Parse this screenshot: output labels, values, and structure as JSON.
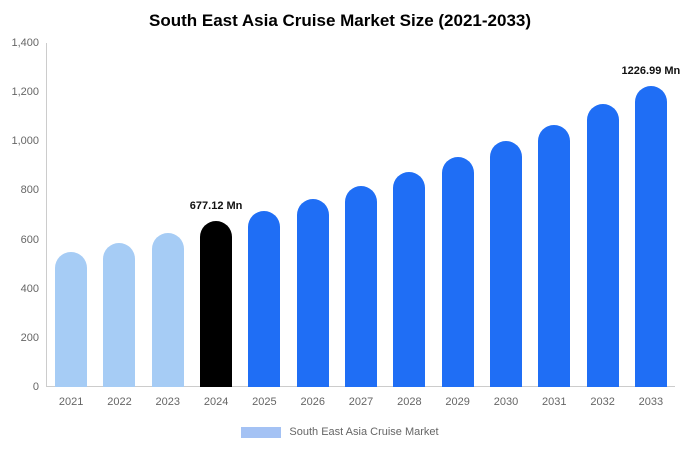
{
  "chart_data": {
    "type": "bar",
    "title": "South East Asia Cruise Market Size (2021-2033)",
    "categories": [
      "2021",
      "2022",
      "2023",
      "2024",
      "2025",
      "2026",
      "2027",
      "2028",
      "2029",
      "2030",
      "2031",
      "2032",
      "2033"
    ],
    "values": [
      549,
      586,
      627,
      677.12,
      716,
      765,
      818,
      875,
      936,
      1001,
      1066,
      1152,
      1226.99
    ],
    "bar_colors": [
      "#a6ccf5",
      "#a6ccf5",
      "#a6ccf5",
      "#000000",
      "#1f6ef5",
      "#1f6ef5",
      "#1f6ef5",
      "#1f6ef5",
      "#1f6ef5",
      "#1f6ef5",
      "#1f6ef5",
      "#1f6ef5",
      "#1f6ef5"
    ],
    "annotations": {
      "2024": "677.12 Mn",
      "2033": "1226.99 Mn"
    },
    "xlabel": "",
    "ylabel": "",
    "ylim": [
      0,
      1400
    ],
    "yticks": [
      0,
      200,
      400,
      600,
      800,
      1000,
      1200,
      1400
    ],
    "ytick_labels": [
      "0",
      "200",
      "400",
      "600",
      "800",
      "1,000",
      "1,200",
      "1,400"
    ],
    "grid": false,
    "legend": "South East Asia Cruise Market",
    "legend_color": "#a4c2f4",
    "legend_position": "bottom",
    "axis_color": "#cccccc"
  }
}
